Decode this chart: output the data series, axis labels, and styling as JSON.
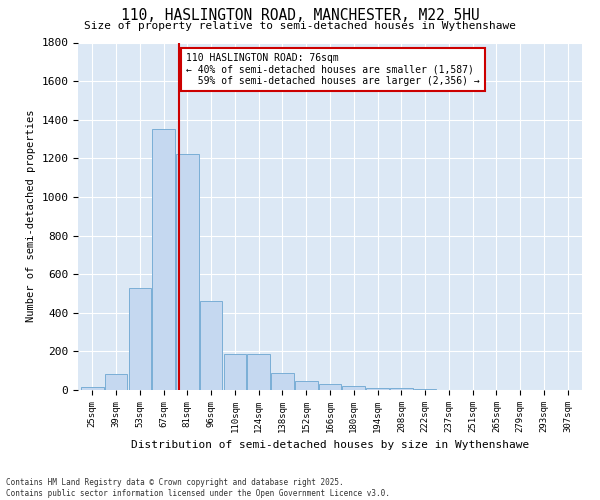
{
  "title": "110, HASLINGTON ROAD, MANCHESTER, M22 5HU",
  "subtitle": "Size of property relative to semi-detached houses in Wythenshawe",
  "xlabel": "Distribution of semi-detached houses by size in Wythenshawe",
  "ylabel": "Number of semi-detached properties",
  "footer_line1": "Contains HM Land Registry data © Crown copyright and database right 2025.",
  "footer_line2": "Contains public sector information licensed under the Open Government Licence v3.0.",
  "bar_labels": [
    "25sqm",
    "39sqm",
    "53sqm",
    "67sqm",
    "81sqm",
    "96sqm",
    "110sqm",
    "124sqm",
    "138sqm",
    "152sqm",
    "166sqm",
    "180sqm",
    "194sqm",
    "208sqm",
    "222sqm",
    "237sqm",
    "251sqm",
    "265sqm",
    "279sqm",
    "293sqm",
    "307sqm"
  ],
  "bar_values": [
    15,
    85,
    530,
    1350,
    1220,
    460,
    185,
    185,
    90,
    45,
    30,
    22,
    12,
    8,
    3,
    1,
    0,
    0,
    0,
    0,
    0
  ],
  "bar_color": "#c5d8f0",
  "bar_edge_color": "#7aaed6",
  "background_color": "#dce8f5",
  "property_label": "110 HASLINGTON ROAD: 76sqm",
  "pct_smaller": 40,
  "pct_larger": 59,
  "count_smaller": 1587,
  "count_larger": 2356,
  "vline_color": "#cc0000",
  "ylim": [
    0,
    1800
  ],
  "yticks": [
    0,
    200,
    400,
    600,
    800,
    1000,
    1200,
    1400,
    1600,
    1800
  ]
}
